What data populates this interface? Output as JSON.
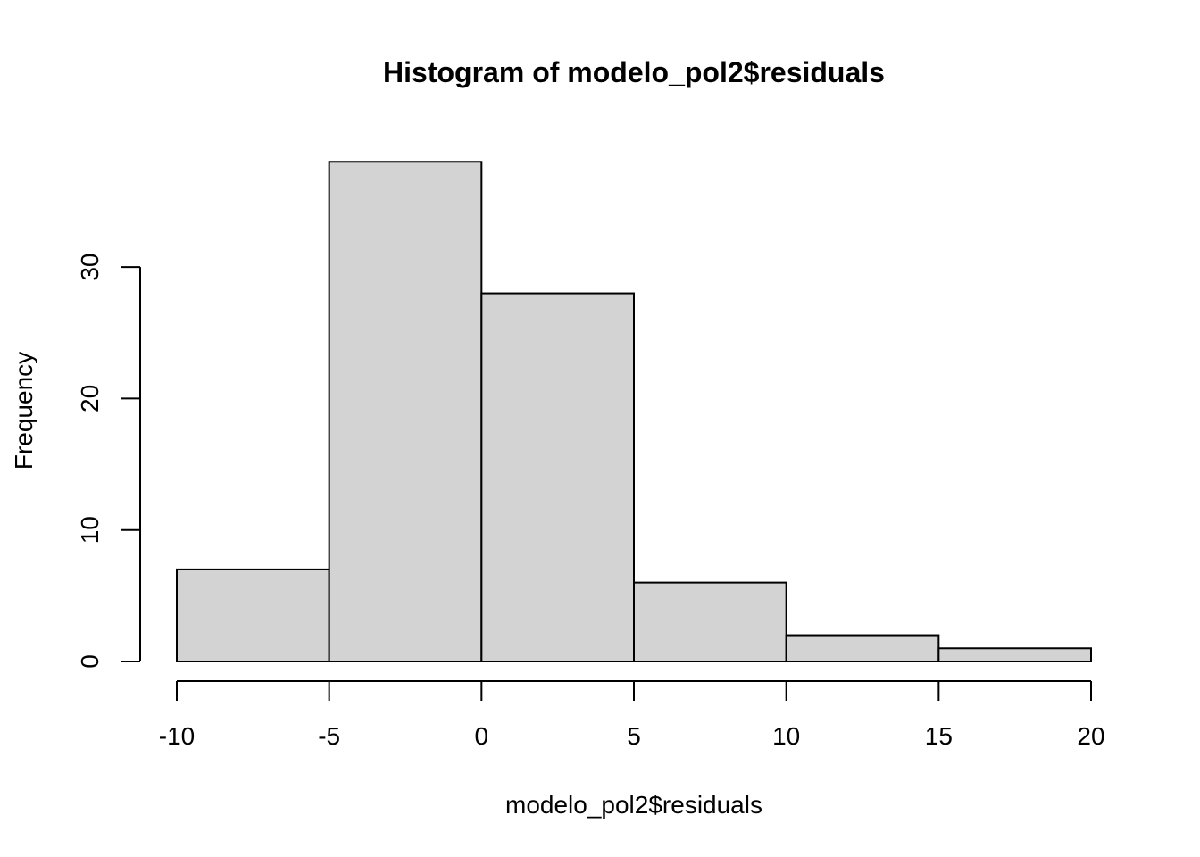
{
  "chart_data": {
    "type": "bar",
    "subtype": "histogram",
    "title": "Histogram of modelo_pol2$residuals",
    "xlabel": "modelo_pol2$residuals",
    "ylabel": "Frequency",
    "bins": [
      {
        "from": -10,
        "to": -5,
        "count": 7
      },
      {
        "from": -5,
        "to": 0,
        "count": 38
      },
      {
        "from": 0,
        "to": 5,
        "count": 28
      },
      {
        "from": 5,
        "to": 10,
        "count": 6
      },
      {
        "from": 10,
        "to": 15,
        "count": 2
      },
      {
        "from": 15,
        "to": 20,
        "count": 1
      }
    ],
    "x_ticks": [
      -10,
      -5,
      0,
      5,
      10,
      15,
      20
    ],
    "y_ticks": [
      0,
      10,
      20,
      30
    ],
    "xlim": [
      -10,
      20
    ],
    "ylim": [
      0,
      38
    ],
    "grid": false,
    "bar_fill": "#d3d3d3",
    "bar_stroke": "#000000"
  }
}
